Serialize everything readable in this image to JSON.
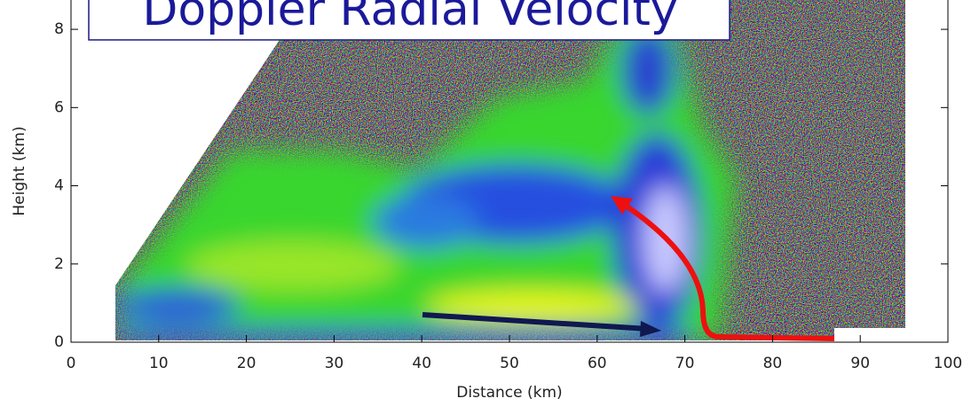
{
  "chart_data": {
    "type": "heatmap",
    "title": "Doppler Radial Velocity",
    "xlabel": "Distance (km)",
    "ylabel": "Height (km)",
    "xlim": [
      0,
      100
    ],
    "ylim": [
      0,
      8.75
    ],
    "xticks": [
      0,
      10,
      20,
      30,
      40,
      50,
      60,
      70,
      80,
      90,
      100
    ],
    "yticks": [
      0,
      2,
      4,
      6,
      8
    ]
  }
}
